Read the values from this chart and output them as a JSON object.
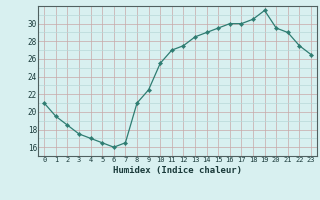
{
  "x": [
    0,
    1,
    2,
    3,
    4,
    5,
    6,
    7,
    8,
    9,
    10,
    11,
    12,
    13,
    14,
    15,
    16,
    17,
    18,
    19,
    20,
    21,
    22,
    23
  ],
  "y": [
    21.0,
    19.5,
    18.5,
    17.5,
    17.0,
    16.5,
    16.0,
    16.5,
    21.0,
    22.5,
    25.5,
    27.0,
    27.5,
    28.5,
    29.0,
    29.5,
    30.0,
    30.0,
    30.5,
    31.5,
    29.5,
    29.0,
    27.5,
    26.5
  ],
  "line_color": "#2e7d72",
  "marker": "D",
  "marker_size": 2.2,
  "bg_color": "#d8f0f0",
  "grid_minor_color": "#b8d8d8",
  "grid_major_color": "#c8a8a8",
  "xlabel": "Humidex (Indice chaleur)",
  "xlim": [
    -0.5,
    23.5
  ],
  "ylim": [
    15.0,
    32.0
  ],
  "yticks": [
    16,
    18,
    20,
    22,
    24,
    26,
    28,
    30
  ],
  "xtick_labels": [
    "0",
    "1",
    "2",
    "3",
    "4",
    "5",
    "6",
    "7",
    "8",
    "9",
    "10",
    "11",
    "12",
    "13",
    "14",
    "15",
    "16",
    "17",
    "18",
    "19",
    "20",
    "21",
    "22",
    "23"
  ]
}
